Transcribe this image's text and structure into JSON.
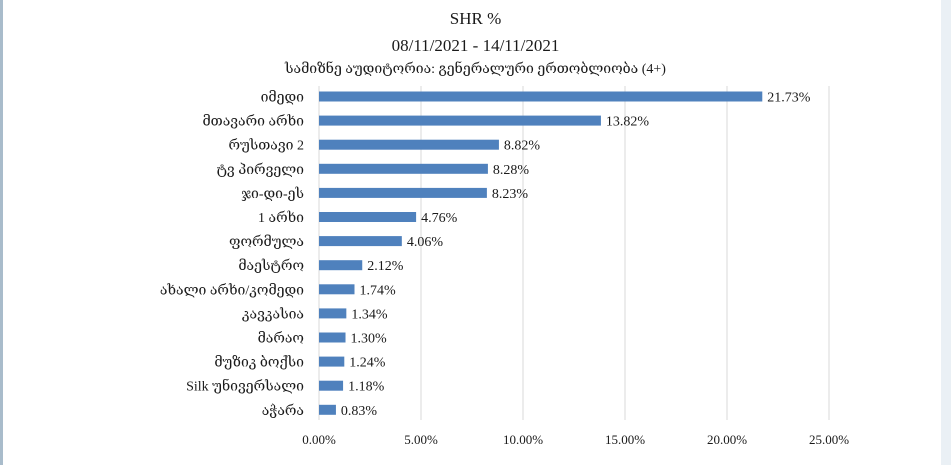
{
  "chart_data": {
    "type": "bar",
    "orientation": "horizontal",
    "title": "SHR %",
    "date_range": "08/11/2021 - 14/11/2021",
    "subtitle": "სამიზნე აუდიტორია: გენერალური ერთობლიობა (4+)",
    "categories": [
      "იმედი",
      "მთავარი არხი",
      "რუსთავი 2",
      "ტვ პირველი",
      "ჯი-დი-ეს",
      "1 არხი",
      "ფორმულა",
      "მაესტრო",
      "ახალი არხი/კომედი",
      "კავკასია",
      "მარაო",
      "მუზიკ ბოქსი",
      "Silk უნივერსალი",
      "აჭარა"
    ],
    "values": [
      21.73,
      13.82,
      8.82,
      8.28,
      8.23,
      4.76,
      4.06,
      2.12,
      1.74,
      1.34,
      1.3,
      1.24,
      1.18,
      0.83
    ],
    "value_labels": [
      "21.73%",
      "13.82%",
      "8.82%",
      "8.28%",
      "8.23%",
      "4.76%",
      "4.06%",
      "2.12%",
      "1.74%",
      "1.34%",
      "1.30%",
      "1.24%",
      "1.18%",
      "0.83%"
    ],
    "x_ticks": [
      0,
      5,
      10,
      15,
      20,
      25
    ],
    "x_tick_labels": [
      "0.00%",
      "5.00%",
      "10.00%",
      "15.00%",
      "20.00%",
      "25.00%"
    ],
    "xlim": [
      0,
      25
    ],
    "grid": "vertical",
    "legend": "none",
    "bar_color": "#4f81bd"
  }
}
